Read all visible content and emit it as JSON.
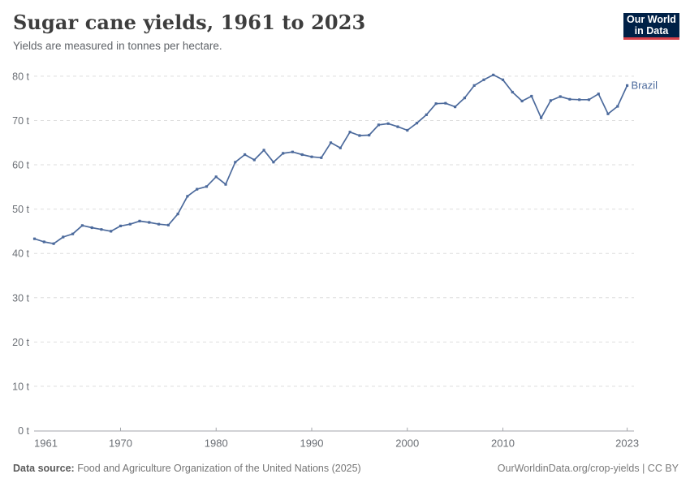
{
  "header": {
    "title": "Sugar cane yields, 1961 to 2023",
    "subtitle": "Yields are measured in tonnes per hectare."
  },
  "logo": {
    "line1": "Our World",
    "line2": "in Data",
    "bg_color": "#002147",
    "accent_color": "#d8414a"
  },
  "chart_data": {
    "type": "line",
    "title": "Sugar cane yields, 1961 to 2023",
    "unit": "tonnes per hectare",
    "y_tick_suffix": " t",
    "xlim": [
      1961,
      2023
    ],
    "ylim": [
      0,
      80
    ],
    "x_ticks": [
      1961,
      1970,
      1980,
      1990,
      2000,
      2010,
      2023
    ],
    "y_ticks": [
      0,
      10,
      20,
      30,
      40,
      50,
      60,
      70,
      80
    ],
    "grid": "horizontal-dashed",
    "legend_position": "end-of-line",
    "series": [
      {
        "name": "Brazil",
        "color": "#4C6A9C",
        "x": [
          1961,
          1962,
          1963,
          1964,
          1965,
          1966,
          1967,
          1968,
          1969,
          1970,
          1971,
          1972,
          1973,
          1974,
          1975,
          1976,
          1977,
          1978,
          1979,
          1980,
          1981,
          1982,
          1983,
          1984,
          1985,
          1986,
          1987,
          1988,
          1989,
          1990,
          1991,
          1992,
          1993,
          1994,
          1995,
          1996,
          1997,
          1998,
          1999,
          2000,
          2001,
          2002,
          2003,
          2004,
          2005,
          2006,
          2007,
          2008,
          2009,
          2010,
          2011,
          2012,
          2013,
          2014,
          2015,
          2016,
          2017,
          2018,
          2019,
          2020,
          2021,
          2022,
          2023
        ],
        "values": [
          43.3,
          42.6,
          42.2,
          43.7,
          44.4,
          46.3,
          45.8,
          45.4,
          45.0,
          46.2,
          46.6,
          47.3,
          47.0,
          46.6,
          46.4,
          48.9,
          52.9,
          54.5,
          55.1,
          57.3,
          55.6,
          60.6,
          62.3,
          61.1,
          63.3,
          60.6,
          62.6,
          62.9,
          62.3,
          61.8,
          61.6,
          65.0,
          63.8,
          67.4,
          66.6,
          66.7,
          69.0,
          69.3,
          68.6,
          67.8,
          69.4,
          71.3,
          73.8,
          73.9,
          73.1,
          75.1,
          77.9,
          79.2,
          80.3,
          79.2,
          76.4,
          74.4,
          75.5,
          70.6,
          74.5,
          75.4,
          74.8,
          74.7,
          74.7,
          76.0,
          71.5,
          73.2,
          77.9
        ]
      }
    ]
  },
  "footer": {
    "source_label": "Data source:",
    "source_text": " Food and Agriculture Organization of the United Nations (2025)",
    "credit": "OurWorldinData.org/crop-yields | CC BY"
  }
}
